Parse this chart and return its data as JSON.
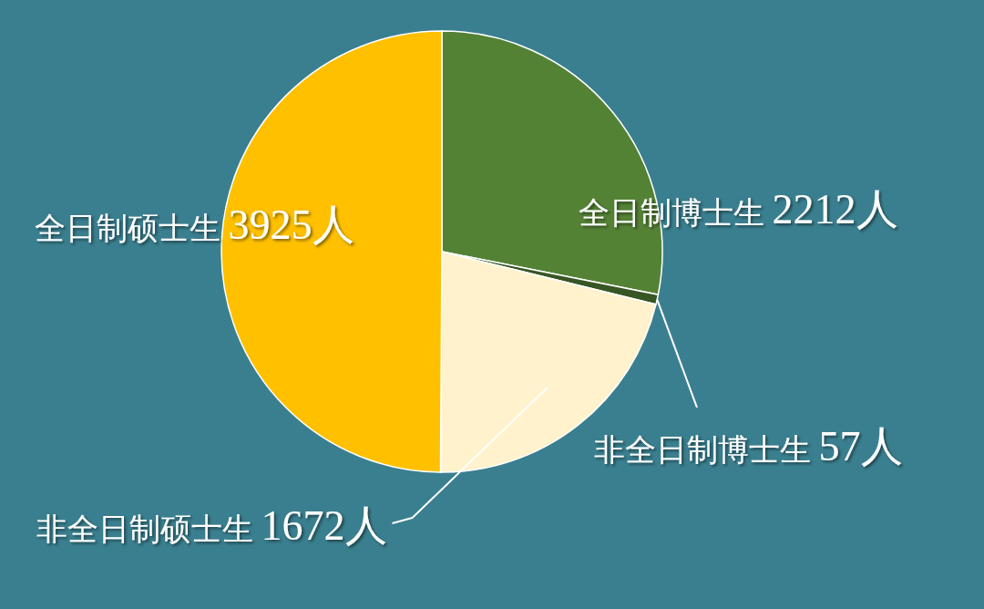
{
  "chart_data": {
    "type": "pie",
    "categories": [
      "全日制博士生",
      "非全日制博士生",
      "非全日制硕士生",
      "全日制硕士生"
    ],
    "values": [
      2212,
      57,
      1672,
      3925
    ],
    "value_labels": [
      "2212人",
      "57人",
      "1672人",
      "3925人"
    ],
    "colors": [
      "#548235",
      "#375623",
      "#fff2cc",
      "#ffc000"
    ]
  }
}
